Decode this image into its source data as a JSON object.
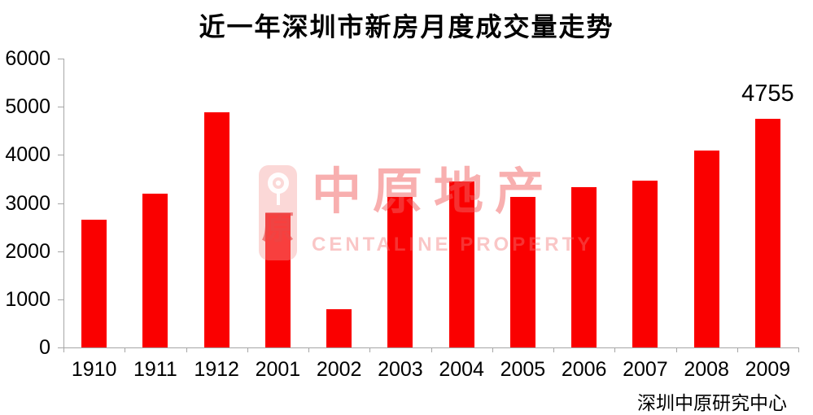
{
  "chart": {
    "title": "近一年深圳市新房月度成交量走势",
    "source": "深圳中原研究中心"
  },
  "watermark": {
    "cn": "中原地产",
    "en": "CENTALINE PROPERTY",
    "seal_char": "原",
    "logo_icon": "centaline-emblem-icon"
  },
  "colors": {
    "bar": "#FA0000",
    "axis": "#A6A6A6",
    "text": "#000000",
    "watermark_pink": "rgba(242,95,95,0.5)"
  },
  "chart_data": {
    "type": "bar",
    "title": "近一年深圳市新房月度成交量走势",
    "categories": [
      "1910",
      "1911",
      "1912",
      "2001",
      "2002",
      "2003",
      "2004",
      "2005",
      "2006",
      "2007",
      "2008",
      "2009"
    ],
    "values": [
      2650,
      3190,
      4880,
      2790,
      790,
      3130,
      3440,
      3130,
      3330,
      3470,
      4090,
      4755
    ],
    "xlabel": "",
    "ylabel": "",
    "ylim": [
      0,
      6000
    ],
    "yticks": [
      0,
      1000,
      2000,
      3000,
      4000,
      5000,
      6000
    ],
    "grid": false,
    "legend": "none",
    "bar_color": "#FA0000",
    "annotations": [
      {
        "category": "2009",
        "text": "4755"
      }
    ]
  }
}
